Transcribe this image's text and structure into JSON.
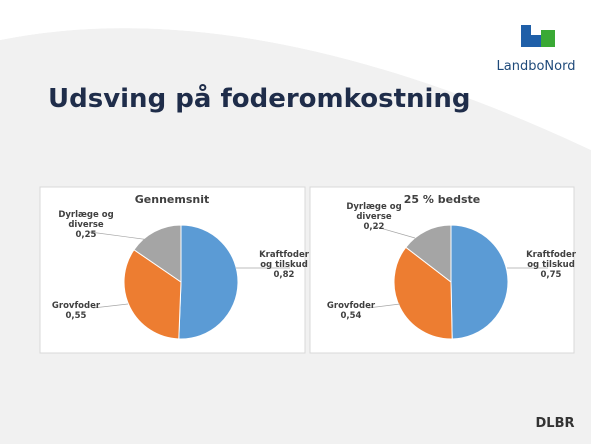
{
  "slide_title": "Udsving på foderomkostning",
  "logo_text": "LandboNord",
  "footer_logo": "DLBR",
  "chart_data": [
    {
      "type": "pie",
      "title": "Gennemsnit",
      "categories": [
        "Kraftfoder og tilskud",
        "Grovfoder",
        "Dyrlæge og diverse"
      ],
      "values": [
        0.82,
        0.55,
        0.25
      ],
      "value_labels": [
        "0,82",
        "0,55",
        "0,25"
      ],
      "colors": [
        "#5b9bd5",
        "#ed7d31",
        "#a5a5a5"
      ]
    },
    {
      "type": "pie",
      "title": "25 % bedste",
      "categories": [
        "Kraftfoder og tilskud",
        "Grovfoder",
        "Dyrlæge og diverse"
      ],
      "values": [
        0.75,
        0.54,
        0.22
      ],
      "value_labels": [
        "0,75",
        "0,54",
        "0,22"
      ],
      "colors": [
        "#5b9bd5",
        "#ed7d31",
        "#a5a5a5"
      ]
    }
  ]
}
